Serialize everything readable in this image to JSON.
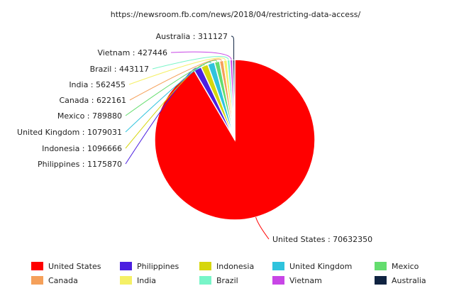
{
  "chart_data": {
    "type": "pie",
    "title": "https://newsroom.fb.com/news/2018/04/restricting-data-access/",
    "legend_position": "bottom",
    "label_separator": " : ",
    "series": [
      {
        "name": "United States",
        "value": 70632350,
        "color": "#ff0000"
      },
      {
        "name": "Philippines",
        "value": 1175870,
        "color": "#4b1fe0"
      },
      {
        "name": "Indonesia",
        "value": 1096666,
        "color": "#d6d60d"
      },
      {
        "name": "United Kingdom",
        "value": 1079031,
        "color": "#2fc3dd"
      },
      {
        "name": "Mexico",
        "value": 789880,
        "color": "#64dd6e"
      },
      {
        "name": "Canada",
        "value": 622161,
        "color": "#f5a05a"
      },
      {
        "name": "India",
        "value": 562455,
        "color": "#f5f066"
      },
      {
        "name": "Brazil",
        "value": 443117,
        "color": "#78f5c8"
      },
      {
        "name": "Vietnam",
        "value": 427446,
        "color": "#c846e6"
      },
      {
        "name": "Australia",
        "value": 311127,
        "color": "#0f2341"
      }
    ]
  }
}
